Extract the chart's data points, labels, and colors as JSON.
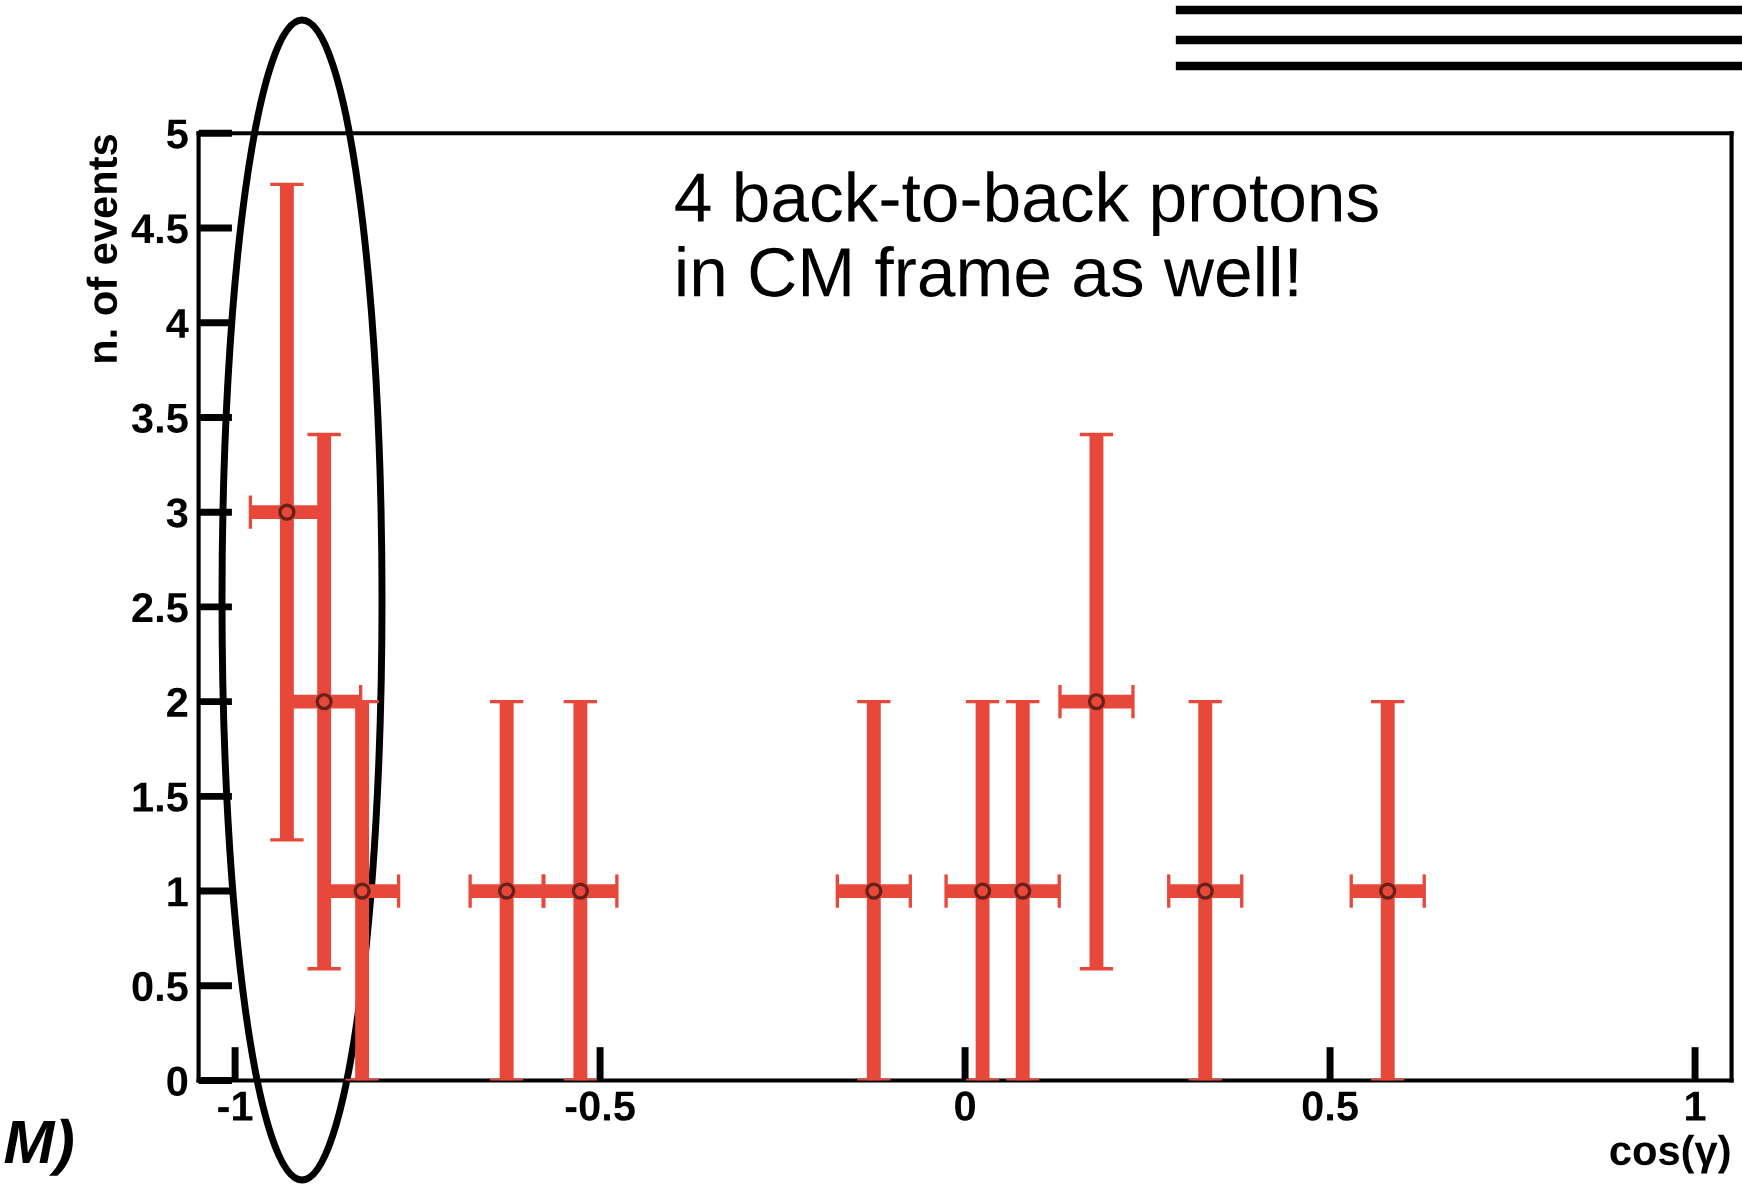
{
  "chart_data": {
    "type": "scatter",
    "xlabel": "cos(γ)",
    "ylabel": "n. of events",
    "annotations": [
      "4 back-to-back protons\nin CM frame as well!",
      "M)"
    ],
    "x": [
      -0.929,
      -0.878,
      -0.826,
      -0.628,
      -0.527,
      -0.125,
      0.024,
      0.079,
      0.18,
      0.329,
      0.579
    ],
    "values": [
      3,
      2,
      1,
      1,
      1,
      1,
      1,
      1,
      2,
      1,
      1
    ],
    "errors": [
      1.73,
      1.41,
      1,
      1,
      1,
      1,
      1,
      1,
      1.41,
      1,
      1
    ],
    "xerrors": [
      0.05,
      0.05,
      0.05,
      0.05,
      0.05,
      0.05,
      0.05,
      0.05,
      0.05,
      0.05,
      0.05
    ],
    "color": "#e8483a",
    "marker": "circle",
    "grid": false,
    "xlim": [
      -1.05,
      1.05
    ],
    "ylim": [
      0,
      5
    ],
    "xticks": [
      -1,
      -0.5,
      0,
      0.5,
      1
    ],
    "yticks": [
      0,
      0.5,
      1,
      1.5,
      2,
      2.5,
      3,
      3.5,
      4,
      4.5,
      5
    ]
  }
}
